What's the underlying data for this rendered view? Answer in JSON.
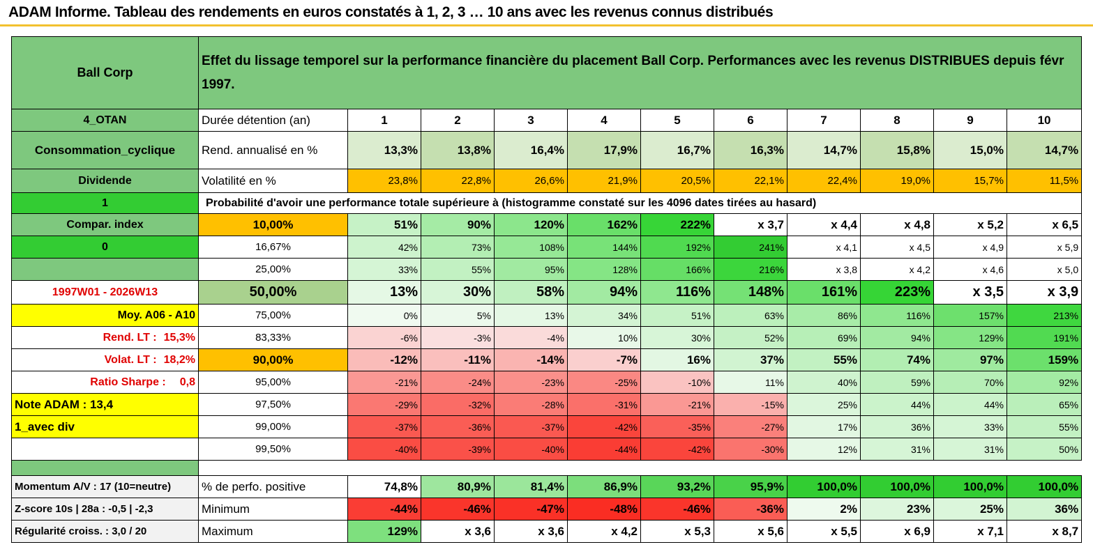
{
  "title": "ADAM Informe. Tableau des rendements en euros constatés à 1, 2, 3 … 10 ans avec les revenus connus distribués",
  "header": {
    "company": "Ball Corp",
    "description": "Effet du lissage temporel sur la performance financière du placement Ball Corp. Performances avec les revenus DISTRIBUES depuis févr 1997."
  },
  "left_panel": {
    "otan": "4_OTAN",
    "sector": "Consommation_cyclique",
    "dividend": "Dividende",
    "value_1": "1",
    "compar_index": "Compar. index",
    "value_0": "0",
    "period": "1997W01 - 2026W13",
    "avg": "Moy. A06 - A10",
    "rend_lt_label": "Rend. LT :",
    "rend_lt_value": "15,3%",
    "volat_lt_label": "Volat. LT :",
    "volat_lt_value": "18,2%",
    "sharpe_label": "Ratio Sharpe :",
    "sharpe_value": "0,8",
    "note": "Note ADAM : 13,4",
    "avec_div": "1_avec div",
    "momentum": "Momentum A/V : 17 (10=neutre)",
    "zscore": "Z-score 10s | 28a : -0,5 | -2,3",
    "regularite": "Régularité croiss. : 3,0 / 20"
  },
  "row_labels": {
    "duration": "Durée détention (an)",
    "rend": "Rend. annualisé en %",
    "volat": "Volatilité en %",
    "prob_title": "Probabilité d'avoir une performance totale supérieure à (histogramme constaté sur les 4096 dates tirées au hasard)",
    "positive": "% de perfo. positive",
    "minimum": "Minimum",
    "maximum": "Maximum"
  },
  "years": [
    "1",
    "2",
    "3",
    "4",
    "5",
    "6",
    "7",
    "8",
    "9",
    "10"
  ],
  "rend_values": [
    "13,3%",
    "13,8%",
    "16,4%",
    "17,9%",
    "16,7%",
    "16,3%",
    "14,7%",
    "15,8%",
    "15,0%",
    "14,7%"
  ],
  "volat_values": [
    "23,8%",
    "22,8%",
    "26,6%",
    "21,9%",
    "20,5%",
    "22,1%",
    "22,4%",
    "19,0%",
    "15,7%",
    "11,5%"
  ],
  "prob_rows": [
    {
      "label": "10,00%",
      "values": [
        "51%",
        "90%",
        "120%",
        "162%",
        "222%",
        "x 3,7",
        "x 4,4",
        "x 4,8",
        "x 5,2",
        "x 6,5"
      ]
    },
    {
      "label": "16,67%",
      "values": [
        "42%",
        "73%",
        "108%",
        "144%",
        "192%",
        "241%",
        "x 4,1",
        "x 4,5",
        "x 4,9",
        "x 5,9"
      ]
    },
    {
      "label": "25,00%",
      "values": [
        "33%",
        "55%",
        "95%",
        "128%",
        "166%",
        "216%",
        "x 3,8",
        "x 4,2",
        "x 4,6",
        "x 5,0"
      ]
    },
    {
      "label": "50,00%",
      "values": [
        "13%",
        "30%",
        "58%",
        "94%",
        "116%",
        "148%",
        "161%",
        "223%",
        "x 3,5",
        "x 3,9"
      ]
    },
    {
      "label": "75,00%",
      "values": [
        "0%",
        "5%",
        "13%",
        "34%",
        "51%",
        "63%",
        "86%",
        "116%",
        "157%",
        "213%"
      ]
    },
    {
      "label": "83,33%",
      "values": [
        "-6%",
        "-3%",
        "-4%",
        "10%",
        "30%",
        "52%",
        "69%",
        "94%",
        "129%",
        "191%"
      ]
    },
    {
      "label": "90,00%",
      "values": [
        "-12%",
        "-11%",
        "-14%",
        "-7%",
        "16%",
        "37%",
        "55%",
        "74%",
        "97%",
        "159%"
      ]
    },
    {
      "label": "95,00%",
      "values": [
        "-21%",
        "-24%",
        "-23%",
        "-25%",
        "-10%",
        "11%",
        "40%",
        "59%",
        "70%",
        "92%"
      ]
    },
    {
      "label": "97,50%",
      "values": [
        "-29%",
        "-32%",
        "-28%",
        "-31%",
        "-21%",
        "-15%",
        "25%",
        "44%",
        "44%",
        "65%"
      ]
    },
    {
      "label": "99,00%",
      "values": [
        "-37%",
        "-36%",
        "-37%",
        "-42%",
        "-35%",
        "-27%",
        "17%",
        "36%",
        "33%",
        "55%"
      ]
    },
    {
      "label": "99,50%",
      "values": [
        "-40%",
        "-39%",
        "-40%",
        "-44%",
        "-42%",
        "-30%",
        "12%",
        "31%",
        "31%",
        "50%"
      ]
    }
  ],
  "positive_values": [
    "74,8%",
    "80,9%",
    "81,4%",
    "86,9%",
    "93,2%",
    "95,9%",
    "100,0%",
    "100,0%",
    "100,0%",
    "100,0%"
  ],
  "min_values": [
    "-44%",
    "-46%",
    "-47%",
    "-48%",
    "-46%",
    "-36%",
    "2%",
    "23%",
    "25%",
    "36%"
  ],
  "max_values": [
    "129%",
    "x 3,6",
    "x 3,6",
    "x 4,2",
    "x 5,3",
    "x 5,6",
    "x 5,5",
    "x 6,9",
    "x 7,1",
    "x 8,7"
  ],
  "colors": {
    "header_green": "#7ec87e",
    "rend_light": "#dbeccf",
    "rend_mid": "#c5dfb0",
    "orange": "#ffc000",
    "bright_green": "#33cc33",
    "yellow": "#ffff00"
  }
}
